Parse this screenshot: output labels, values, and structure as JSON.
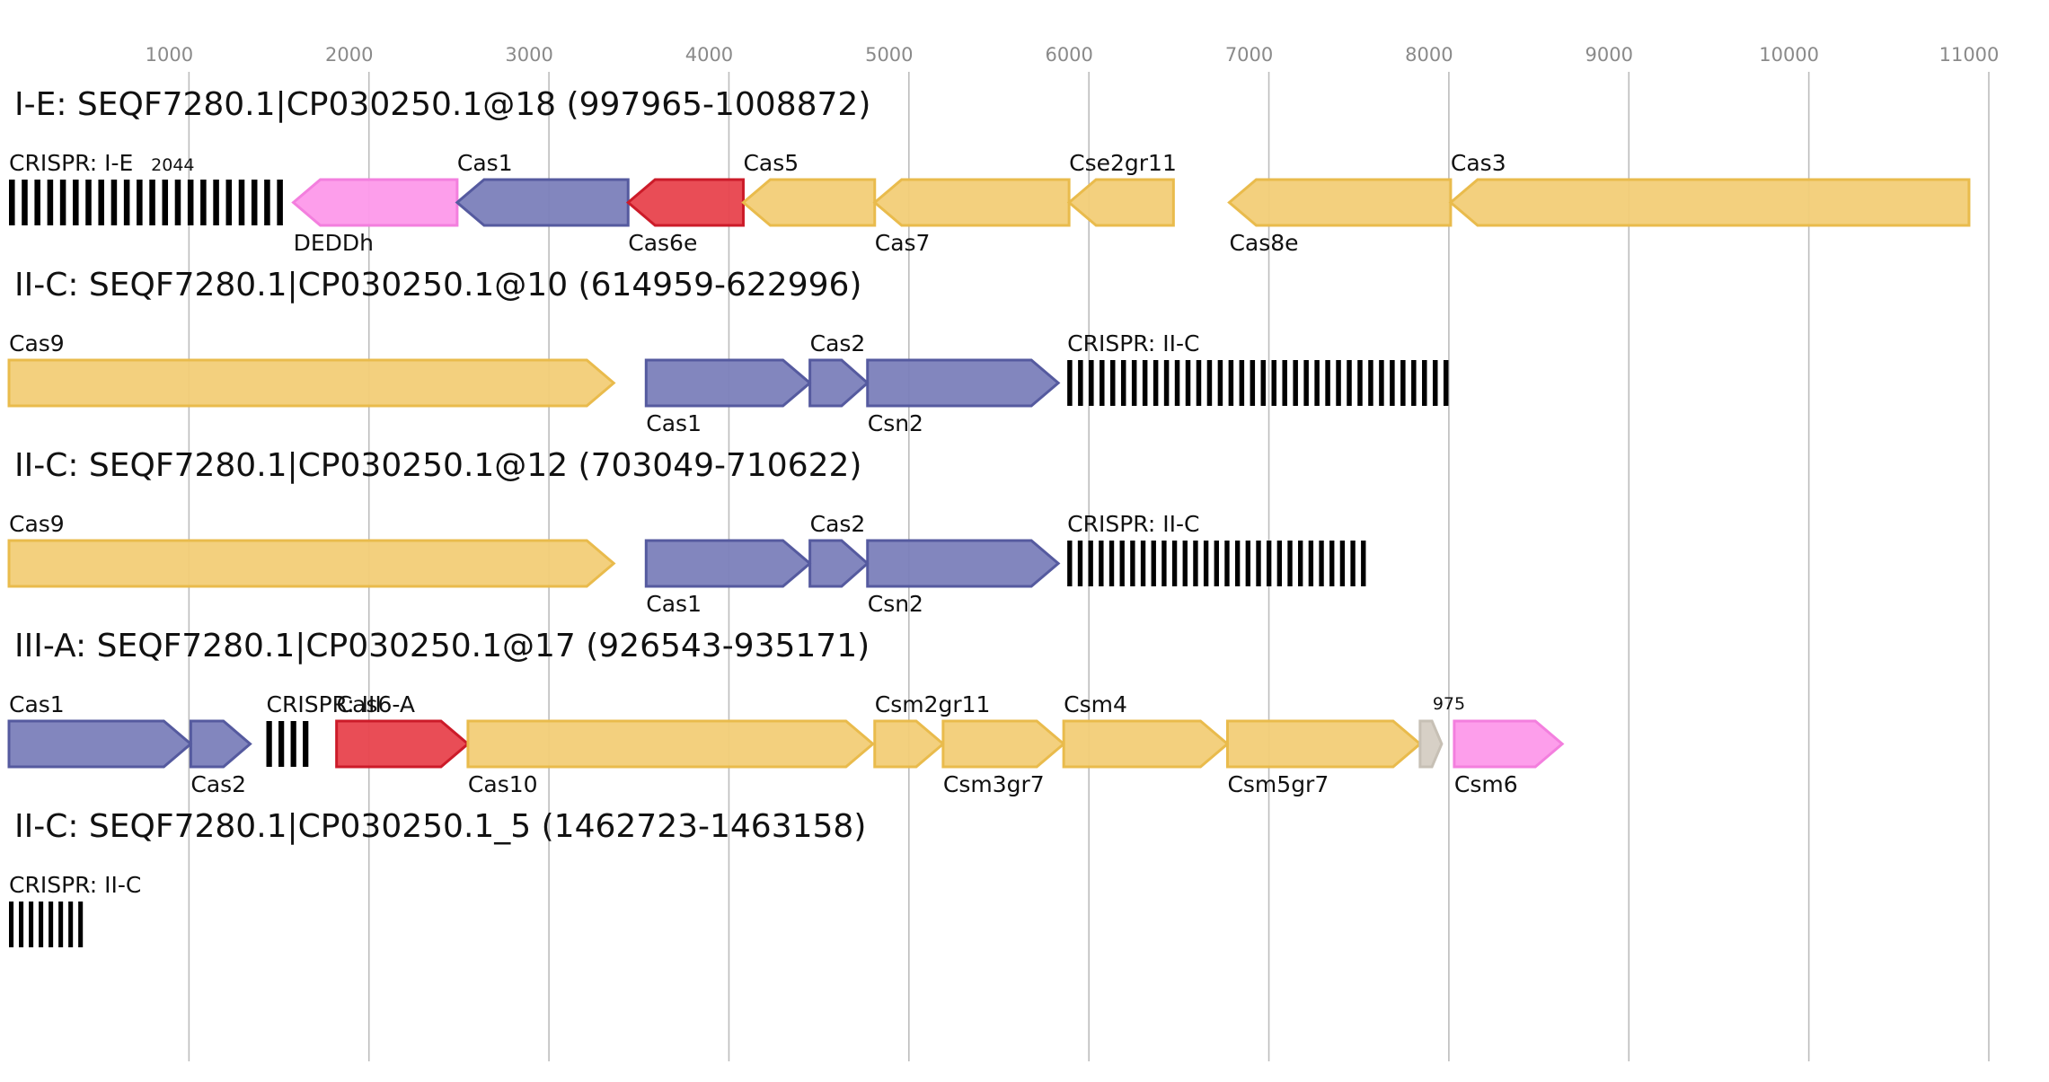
{
  "colors": {
    "yellow_fill": "#f2cd77",
    "yellow_stroke": "#e9bb4c",
    "blue_fill": "#7b7fba",
    "blue_stroke": "#555a9f",
    "red_fill": "#e8434d",
    "red_stroke": "#cc1b29",
    "pink_fill": "#fd99ea",
    "pink_stroke": "#f37fde",
    "grey_fill": "#d5cec3",
    "grey_stroke": "#c7c0b5",
    "grid": "#bdbdbd",
    "tick_text": "#8a8a8a"
  },
  "axis": {
    "ticks": [
      "1000",
      "2000",
      "3000",
      "4000",
      "5000",
      "6000",
      "7000",
      "8000",
      "9000",
      "10000",
      "11000"
    ]
  },
  "loci": [
    {
      "title": "I-E: SEQF7280.1|CP030250.1@18 (997965-1008872)",
      "features": [
        {
          "kind": "crispr",
          "label": "CRISPR: I-E",
          "label_pos": "above",
          "start": 0,
          "end": 1560,
          "bars": 22
        },
        {
          "kind": "small",
          "label": "2044",
          "start": 400,
          "end": 400
        },
        {
          "kind": "gene",
          "label": "DEDDh",
          "label_pos": "below",
          "start": 1580,
          "end": 2490,
          "strand": "-",
          "color": "pink"
        },
        {
          "kind": "gene",
          "label": "Cas1",
          "label_pos": "above",
          "start": 2490,
          "end": 3440,
          "strand": "-",
          "color": "blue"
        },
        {
          "kind": "gene",
          "label": "Cas6e",
          "label_pos": "below",
          "start": 3440,
          "end": 4080,
          "strand": "-",
          "color": "red"
        },
        {
          "kind": "gene",
          "label": "Cas5",
          "label_pos": "above",
          "start": 4080,
          "end": 4810,
          "strand": "-",
          "color": "yellow"
        },
        {
          "kind": "gene",
          "label": "Cas7",
          "label_pos": "below",
          "start": 4810,
          "end": 5890,
          "strand": "-",
          "color": "yellow"
        },
        {
          "kind": "gene",
          "label": "Cse2gr11",
          "label_pos": "above",
          "start": 5890,
          "end": 6470,
          "strand": "-",
          "color": "yellow"
        },
        {
          "kind": "gene",
          "label": "Cas8e",
          "label_pos": "below",
          "start": 6780,
          "end": 8010,
          "strand": "-",
          "color": "yellow"
        },
        {
          "kind": "gene",
          "label": "Cas3",
          "label_pos": "above",
          "start": 8010,
          "end": 10890,
          "strand": "-",
          "color": "yellow"
        }
      ]
    },
    {
      "title": "II-C: SEQF7280.1|CP030250.1@10 (614959-622996)",
      "features": [
        {
          "kind": "gene",
          "label": "Cas9",
          "label_pos": "above",
          "start": 0,
          "end": 3360,
          "strand": "+",
          "color": "yellow"
        },
        {
          "kind": "gene",
          "label": "Cas1",
          "label_pos": "below",
          "start": 3540,
          "end": 4450,
          "strand": "+",
          "color": "blue"
        },
        {
          "kind": "gene",
          "label": "Cas2",
          "label_pos": "above",
          "start": 4450,
          "end": 4770,
          "strand": "+",
          "color": "blue"
        },
        {
          "kind": "gene",
          "label": "Csn2",
          "label_pos": "below",
          "start": 4770,
          "end": 5830,
          "strand": "+",
          "color": "blue"
        },
        {
          "kind": "crispr",
          "label": "CRISPR: II-C",
          "label_pos": "above",
          "start": 5880,
          "end": 8030,
          "bars": 36
        }
      ]
    },
    {
      "title": "II-C: SEQF7280.1|CP030250.1@12 (703049-710622)",
      "features": [
        {
          "kind": "gene",
          "label": "Cas9",
          "label_pos": "above",
          "start": 0,
          "end": 3360,
          "strand": "+",
          "color": "yellow"
        },
        {
          "kind": "gene",
          "label": "Cas1",
          "label_pos": "below",
          "start": 3540,
          "end": 4450,
          "strand": "+",
          "color": "blue"
        },
        {
          "kind": "gene",
          "label": "Cas2",
          "label_pos": "above",
          "start": 4450,
          "end": 4770,
          "strand": "+",
          "color": "blue"
        },
        {
          "kind": "gene",
          "label": "Csn2",
          "label_pos": "below",
          "start": 4770,
          "end": 5830,
          "strand": "+",
          "color": "blue"
        },
        {
          "kind": "crispr",
          "label": "CRISPR: II-C",
          "label_pos": "above",
          "start": 5880,
          "end": 7570,
          "bars": 29
        }
      ]
    },
    {
      "title": "III-A: SEQF7280.1|CP030250.1@17 (926543-935171)",
      "features": [
        {
          "kind": "gene",
          "label": "Cas1",
          "label_pos": "above",
          "start": 0,
          "end": 1010,
          "strand": "+",
          "color": "blue"
        },
        {
          "kind": "gene",
          "label": "Cas2",
          "label_pos": "below",
          "start": 1010,
          "end": 1340,
          "strand": "+",
          "color": "blue"
        },
        {
          "kind": "crispr",
          "label": "CRISPR: III",
          "label_pos": "above",
          "start": 1430,
          "end": 1700,
          "bars": 4
        },
        {
          "kind": "gene",
          "label": "Cas6-A",
          "label_pos": "above",
          "start": 1820,
          "end": 2550,
          "strand": "+",
          "color": "red"
        },
        {
          "kind": "gene",
          "label": "Cas10",
          "label_pos": "below",
          "start": 2550,
          "end": 4800,
          "strand": "+",
          "color": "yellow"
        },
        {
          "kind": "gene",
          "label": "Csm2gr11",
          "label_pos": "above",
          "start": 4810,
          "end": 5190,
          "strand": "+",
          "color": "yellow"
        },
        {
          "kind": "gene",
          "label": "Csm3gr7",
          "label_pos": "below",
          "start": 5190,
          "end": 5860,
          "strand": "+",
          "color": "yellow"
        },
        {
          "kind": "gene",
          "label": "Csm4",
          "label_pos": "above",
          "start": 5860,
          "end": 6770,
          "strand": "+",
          "color": "yellow"
        },
        {
          "kind": "gene",
          "label": "Csm5gr7",
          "label_pos": "below",
          "start": 6770,
          "end": 7840,
          "strand": "+",
          "color": "yellow"
        },
        {
          "kind": "gene",
          "label": "975",
          "label_pos": "above",
          "label_small": true,
          "start": 7840,
          "end": 7960,
          "strand": "+",
          "color": "grey"
        },
        {
          "kind": "gene",
          "label": "Csm6",
          "label_pos": "below",
          "start": 8030,
          "end": 8630,
          "strand": "+",
          "color": "pink"
        }
      ]
    },
    {
      "title": "II-C: SEQF7280.1|CP030250.1_5 (1462723-1463158)",
      "features": [
        {
          "kind": "crispr",
          "label": "CRISPR: II-C",
          "label_pos": "above",
          "start": 0,
          "end": 440,
          "bars": 8
        }
      ]
    }
  ]
}
